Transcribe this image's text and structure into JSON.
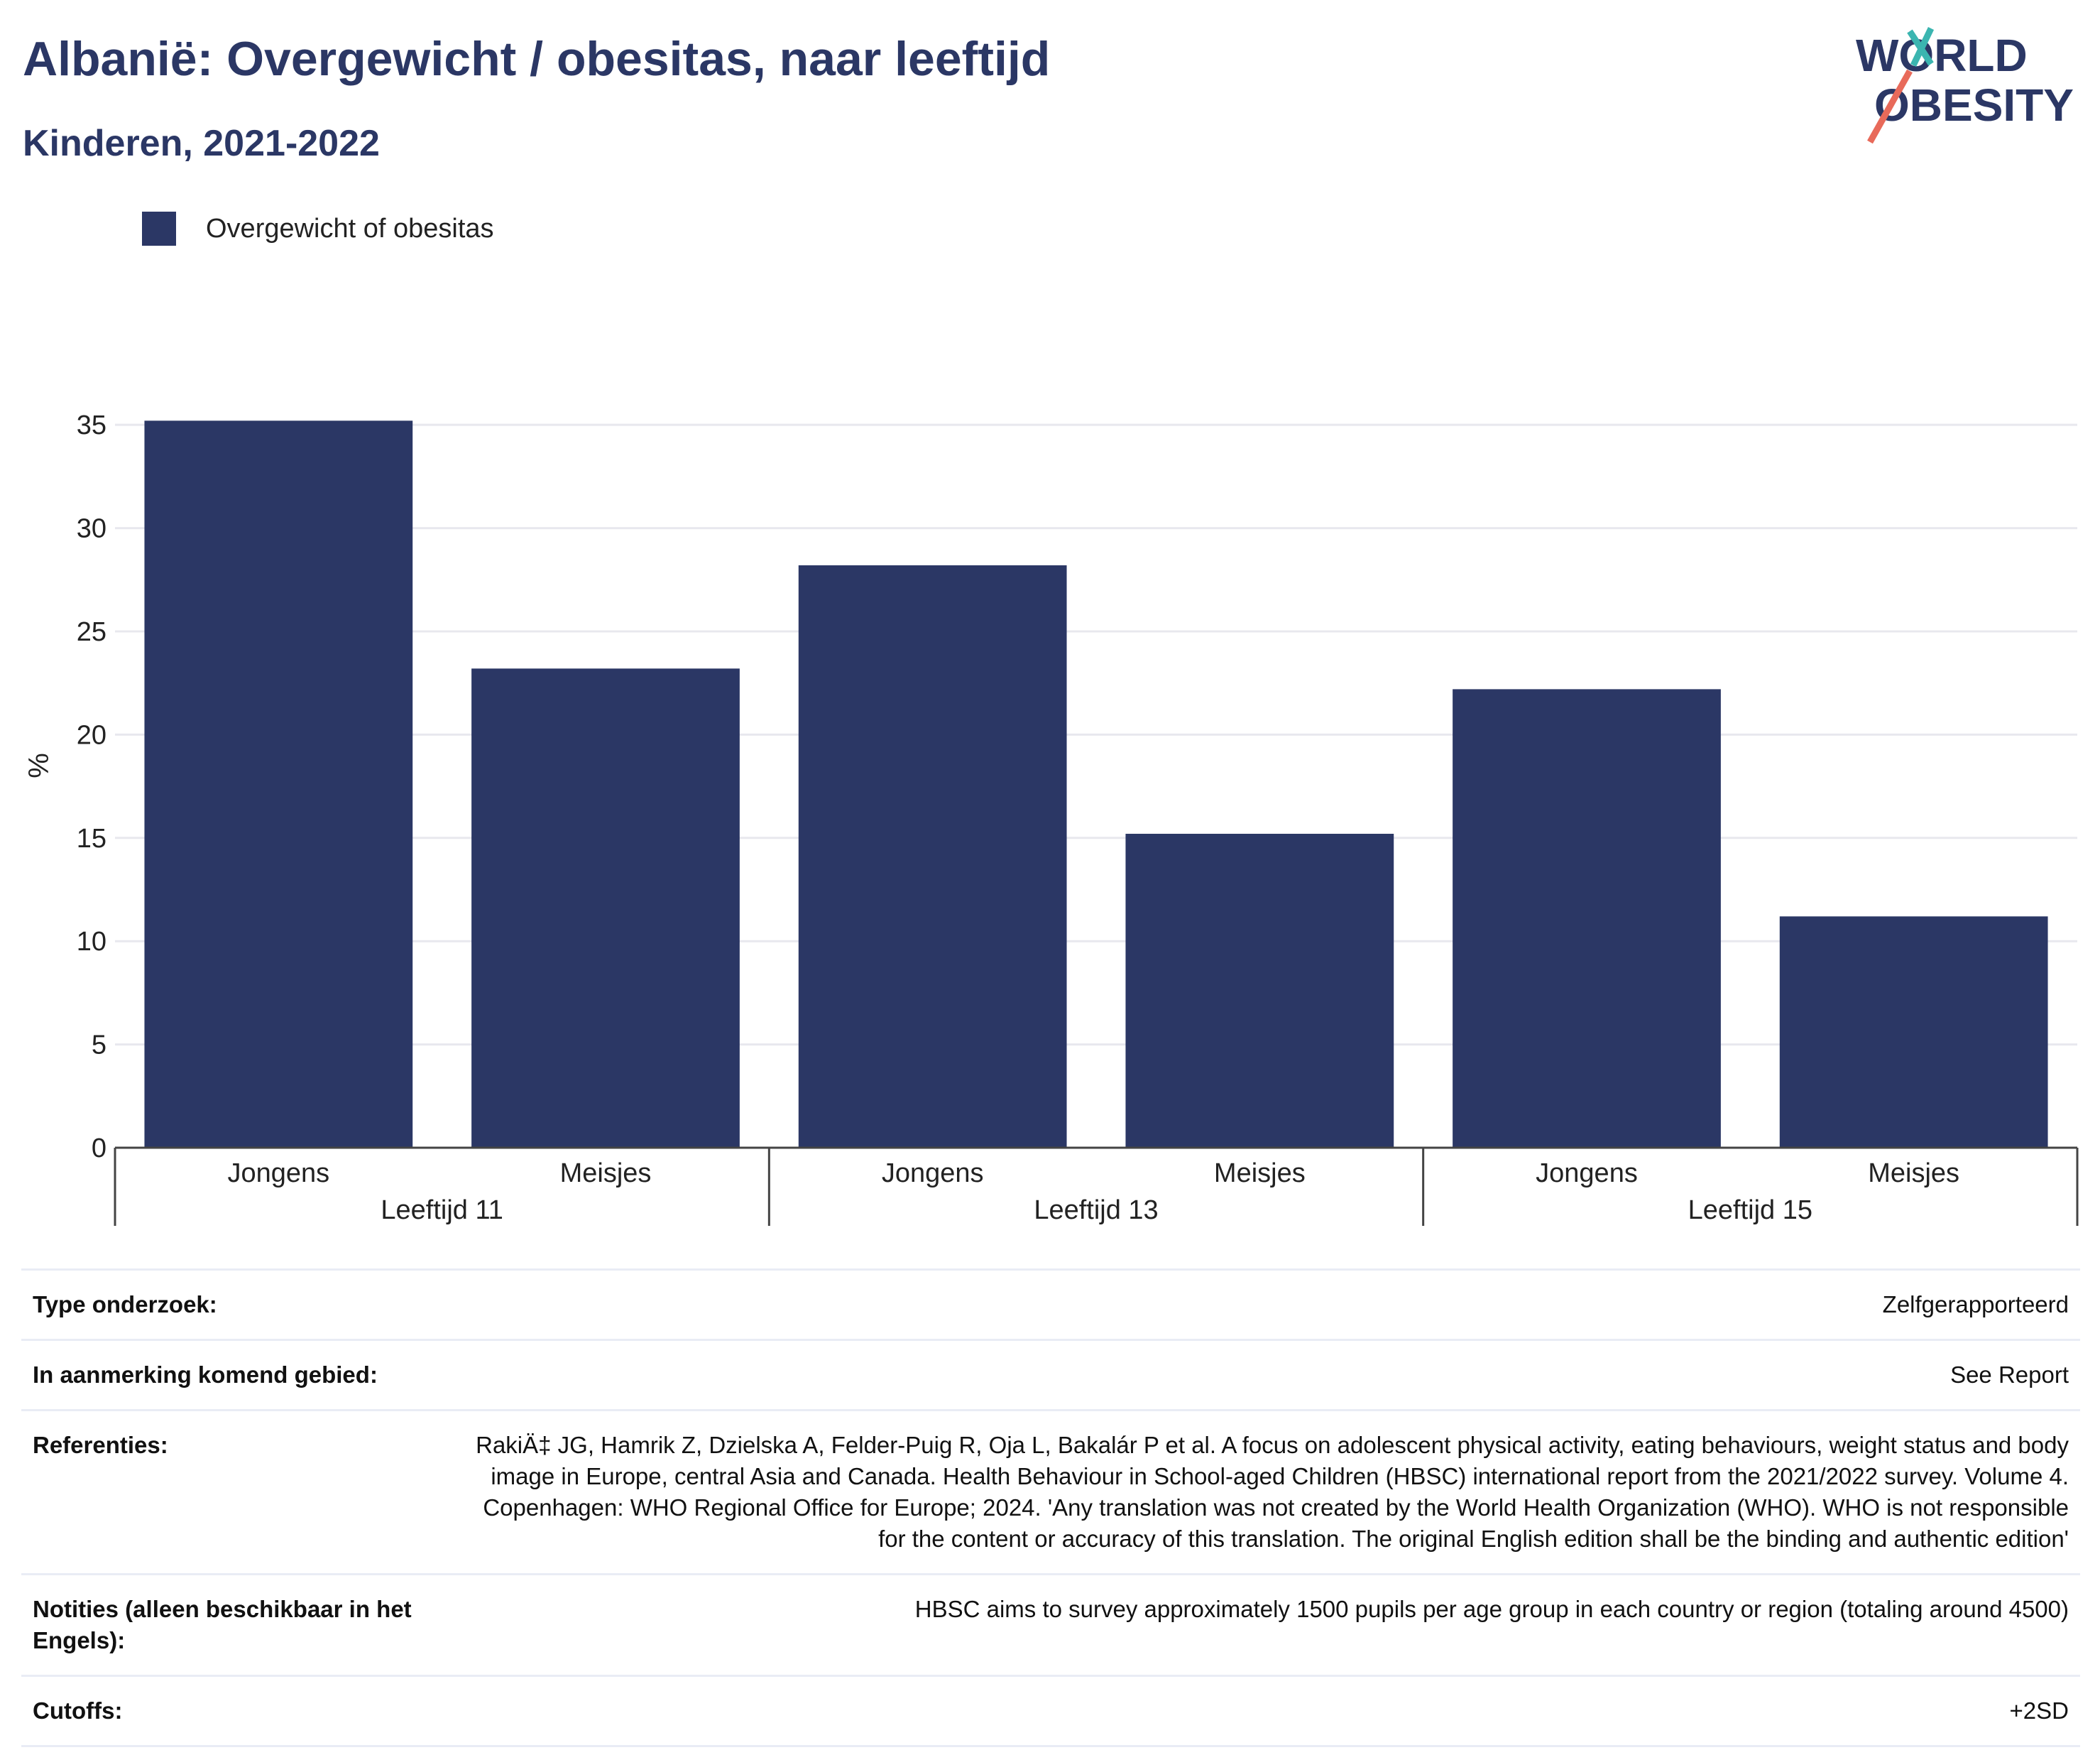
{
  "header": {
    "title": "Albanië: Overgewicht / obesitas, naar leeftijd",
    "subtitle": "Kinderen, 2021-2022"
  },
  "logo": {
    "line1": "WORLD",
    "line2": "OBESITY"
  },
  "legend": {
    "label": "Overgewicht of obesitas",
    "color": "#2b3765"
  },
  "chart_data": {
    "type": "bar",
    "categories": [
      "Jongens",
      "Meisjes",
      "Jongens",
      "Meisjes",
      "Jongens",
      "Meisjes"
    ],
    "groups": [
      "Leeftijd 11",
      "Leeftijd 13",
      "Leeftijd 15"
    ],
    "series": [
      {
        "name": "Overgewicht of obesitas",
        "values": [
          35.2,
          23.2,
          28.2,
          15.2,
          22.2,
          11.2
        ],
        "color": "#2b3765"
      }
    ],
    "ylabel": "%",
    "xlabel": "",
    "ylim": [
      0,
      37
    ],
    "yticks": [
      0,
      5,
      10,
      15,
      20,
      25,
      30,
      35
    ],
    "grid": true
  },
  "meta": [
    {
      "label": "Type onderzoek:",
      "value": "Zelfgerapporteerd"
    },
    {
      "label": "In aanmerking komend gebied:",
      "value": "See Report"
    },
    {
      "label": "Referenties:",
      "value": "RakiÄ‡ JG, Hamrik Z, Dzielska A, Felder-Puig R, Oja L, Bakalár P et al. A focus on adolescent physical activity, eating behaviours, weight status and body image in Europe, central Asia and Canada. Health Behaviour in School-aged Children (HBSC) international report from the 2021/2022 survey. Volume 4. Copenhagen: WHO Regional Office for Europe; 2024. 'Any translation was not created by the World Health Organization (WHO). WHO is not responsible for the content or accuracy of this translation. The original English edition shall be the binding and authentic edition'"
    },
    {
      "label": "Notities (alleen beschikbaar in het Engels):",
      "value": "HBSC aims to survey approximately 1500 pupils per age group in each country or region (totaling around 4500)"
    },
    {
      "label": "Cutoffs:",
      "value": "+2SD"
    }
  ]
}
